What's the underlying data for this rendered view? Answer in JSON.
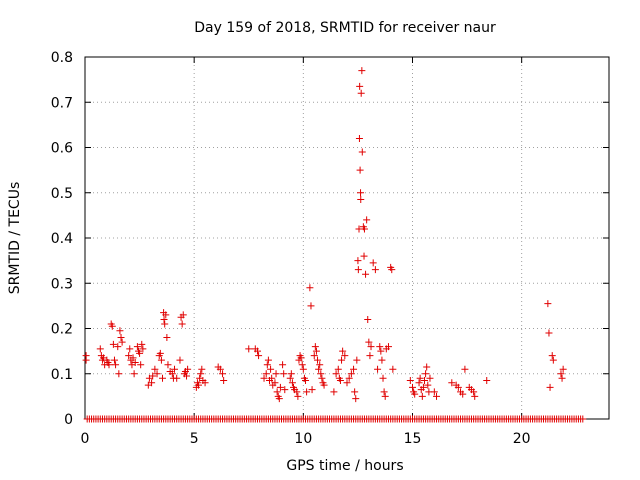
{
  "chart_data": {
    "type": "scatter",
    "title": "Day 159 of 2018, SRMTID for receiver naur",
    "xlabel": "GPS time / hours",
    "ylabel": "SRMTID / TECUs",
    "xlim": [
      0,
      24
    ],
    "ylim": [
      0,
      0.8
    ],
    "xticks": [
      0,
      5,
      10,
      15,
      20
    ],
    "xtick_labels": [
      "0",
      "5",
      "10",
      "15",
      "20"
    ],
    "yticks": [
      0,
      0.1,
      0.2,
      0.3,
      0.4,
      0.5,
      0.6,
      0.7,
      0.8
    ],
    "ytick_labels": [
      "0",
      "0.1",
      "0.2",
      "0.3",
      "0.4",
      "0.5",
      "0.6",
      "0.7",
      "0.8"
    ],
    "grid": true,
    "marker": "+",
    "marker_color": "#e00000",
    "zero_line": {
      "x_start": 0.1,
      "x_end": 22.8,
      "step": 0.1,
      "y": 0
    },
    "series": [
      {
        "name": "SRMTID",
        "points": [
          [
            0.05,
            0.14
          ],
          [
            0.05,
            0.13
          ],
          [
            0.7,
            0.155
          ],
          [
            0.75,
            0.14
          ],
          [
            0.8,
            0.13
          ],
          [
            0.85,
            0.135
          ],
          [
            0.9,
            0.12
          ],
          [
            1.0,
            0.13
          ],
          [
            1.05,
            0.125
          ],
          [
            1.1,
            0.12
          ],
          [
            1.2,
            0.21
          ],
          [
            1.25,
            0.205
          ],
          [
            1.3,
            0.165
          ],
          [
            1.35,
            0.13
          ],
          [
            1.4,
            0.12
          ],
          [
            1.5,
            0.16
          ],
          [
            1.6,
            0.195
          ],
          [
            1.65,
            0.18
          ],
          [
            1.7,
            0.17
          ],
          [
            1.55,
            0.1
          ],
          [
            2.0,
            0.14
          ],
          [
            2.05,
            0.155
          ],
          [
            2.1,
            0.13
          ],
          [
            2.15,
            0.12
          ],
          [
            2.2,
            0.135
          ],
          [
            2.25,
            0.1
          ],
          [
            2.3,
            0.125
          ],
          [
            2.4,
            0.16
          ],
          [
            2.45,
            0.15
          ],
          [
            2.5,
            0.145
          ],
          [
            2.55,
            0.12
          ],
          [
            2.6,
            0.165
          ],
          [
            2.65,
            0.155
          ],
          [
            2.9,
            0.075
          ],
          [
            2.95,
            0.09
          ],
          [
            3.05,
            0.08
          ],
          [
            3.1,
            0.095
          ],
          [
            3.2,
            0.11
          ],
          [
            3.3,
            0.1
          ],
          [
            3.4,
            0.14
          ],
          [
            3.45,
            0.145
          ],
          [
            3.5,
            0.13
          ],
          [
            3.55,
            0.09
          ],
          [
            3.6,
            0.235
          ],
          [
            3.62,
            0.22
          ],
          [
            3.65,
            0.21
          ],
          [
            3.7,
            0.23
          ],
          [
            3.75,
            0.18
          ],
          [
            3.8,
            0.12
          ],
          [
            3.9,
            0.105
          ],
          [
            4.0,
            0.1
          ],
          [
            4.05,
            0.09
          ],
          [
            4.1,
            0.11
          ],
          [
            4.2,
            0.09
          ],
          [
            4.35,
            0.13
          ],
          [
            4.4,
            0.225
          ],
          [
            4.45,
            0.21
          ],
          [
            4.5,
            0.23
          ],
          [
            4.55,
            0.1
          ],
          [
            4.6,
            0.105
          ],
          [
            4.65,
            0.095
          ],
          [
            4.7,
            0.11
          ],
          [
            5.1,
            0.07
          ],
          [
            5.15,
            0.08
          ],
          [
            5.2,
            0.075
          ],
          [
            5.25,
            0.09
          ],
          [
            5.3,
            0.1
          ],
          [
            5.35,
            0.11
          ],
          [
            5.4,
            0.085
          ],
          [
            5.5,
            0.08
          ],
          [
            6.1,
            0.115
          ],
          [
            6.2,
            0.11
          ],
          [
            6.3,
            0.1
          ],
          [
            6.35,
            0.085
          ],
          [
            7.5,
            0.155
          ],
          [
            7.8,
            0.155
          ],
          [
            7.9,
            0.15
          ],
          [
            7.95,
            0.14
          ],
          [
            8.2,
            0.09
          ],
          [
            8.3,
            0.1
          ],
          [
            8.35,
            0.12
          ],
          [
            8.4,
            0.13
          ],
          [
            8.45,
            0.085
          ],
          [
            8.5,
            0.11
          ],
          [
            8.55,
            0.09
          ],
          [
            8.6,
            0.075
          ],
          [
            8.7,
            0.08
          ],
          [
            8.75,
            0.1
          ],
          [
            8.8,
            0.06
          ],
          [
            8.85,
            0.05
          ],
          [
            8.9,
            0.045
          ],
          [
            8.95,
            0.07
          ],
          [
            9.05,
            0.12
          ],
          [
            9.1,
            0.1
          ],
          [
            9.15,
            0.065
          ],
          [
            9.4,
            0.09
          ],
          [
            9.45,
            0.1
          ],
          [
            9.5,
            0.08
          ],
          [
            9.55,
            0.07
          ],
          [
            9.6,
            0.065
          ],
          [
            9.7,
            0.06
          ],
          [
            9.75,
            0.05
          ],
          [
            9.8,
            0.13
          ],
          [
            9.85,
            0.14
          ],
          [
            9.9,
            0.135
          ],
          [
            9.95,
            0.12
          ],
          [
            10.0,
            0.11
          ],
          [
            10.05,
            0.09
          ],
          [
            10.1,
            0.085
          ],
          [
            10.15,
            0.06
          ],
          [
            10.3,
            0.29
          ],
          [
            10.35,
            0.25
          ],
          [
            10.4,
            0.065
          ],
          [
            10.5,
            0.14
          ],
          [
            10.55,
            0.16
          ],
          [
            10.6,
            0.15
          ],
          [
            10.65,
            0.13
          ],
          [
            10.7,
            0.11
          ],
          [
            10.75,
            0.12
          ],
          [
            10.8,
            0.1
          ],
          [
            10.85,
            0.09
          ],
          [
            10.9,
            0.08
          ],
          [
            10.95,
            0.075
          ],
          [
            11.4,
            0.06
          ],
          [
            11.5,
            0.1
          ],
          [
            11.6,
            0.11
          ],
          [
            11.65,
            0.09
          ],
          [
            11.7,
            0.085
          ],
          [
            11.75,
            0.13
          ],
          [
            11.8,
            0.15
          ],
          [
            11.9,
            0.14
          ],
          [
            12.0,
            0.08
          ],
          [
            12.1,
            0.09
          ],
          [
            12.2,
            0.1
          ],
          [
            12.3,
            0.11
          ],
          [
            12.35,
            0.06
          ],
          [
            12.4,
            0.045
          ],
          [
            12.45,
            0.13
          ],
          [
            12.5,
            0.35
          ],
          [
            12.52,
            0.33
          ],
          [
            12.55,
            0.42
          ],
          [
            12.57,
            0.62
          ],
          [
            12.58,
            0.735
          ],
          [
            12.6,
            0.55
          ],
          [
            12.62,
            0.5
          ],
          [
            12.63,
            0.485
          ],
          [
            12.65,
            0.72
          ],
          [
            12.68,
            0.77
          ],
          [
            12.7,
            0.59
          ],
          [
            12.75,
            0.425
          ],
          [
            12.78,
            0.36
          ],
          [
            12.8,
            0.42
          ],
          [
            12.85,
            0.32
          ],
          [
            12.9,
            0.44
          ],
          [
            12.95,
            0.22
          ],
          [
            13.0,
            0.17
          ],
          [
            13.05,
            0.14
          ],
          [
            13.1,
            0.16
          ],
          [
            13.2,
            0.345
          ],
          [
            13.3,
            0.33
          ],
          [
            13.4,
            0.11
          ],
          [
            13.5,
            0.16
          ],
          [
            13.55,
            0.15
          ],
          [
            13.6,
            0.13
          ],
          [
            13.65,
            0.09
          ],
          [
            13.7,
            0.06
          ],
          [
            13.75,
            0.05
          ],
          [
            13.8,
            0.155
          ],
          [
            13.9,
            0.16
          ],
          [
            14.0,
            0.335
          ],
          [
            14.05,
            0.33
          ],
          [
            14.1,
            0.11
          ],
          [
            14.9,
            0.085
          ],
          [
            15.0,
            0.07
          ],
          [
            15.05,
            0.06
          ],
          [
            15.1,
            0.055
          ],
          [
            15.3,
            0.08
          ],
          [
            15.35,
            0.09
          ],
          [
            15.4,
            0.065
          ],
          [
            15.45,
            0.05
          ],
          [
            15.5,
            0.07
          ],
          [
            15.55,
            0.085
          ],
          [
            15.6,
            0.1
          ],
          [
            15.65,
            0.115
          ],
          [
            15.7,
            0.075
          ],
          [
            15.75,
            0.06
          ],
          [
            15.8,
            0.09
          ],
          [
            16.0,
            0.06
          ],
          [
            16.1,
            0.05
          ],
          [
            16.8,
            0.08
          ],
          [
            17.0,
            0.075
          ],
          [
            17.1,
            0.07
          ],
          [
            17.2,
            0.06
          ],
          [
            17.3,
            0.055
          ],
          [
            17.4,
            0.11
          ],
          [
            17.6,
            0.07
          ],
          [
            17.7,
            0.065
          ],
          [
            17.8,
            0.06
          ],
          [
            17.85,
            0.05
          ],
          [
            18.4,
            0.085
          ],
          [
            21.2,
            0.255
          ],
          [
            21.25,
            0.19
          ],
          [
            21.3,
            0.07
          ],
          [
            21.4,
            0.14
          ],
          [
            21.45,
            0.13
          ],
          [
            21.8,
            0.1
          ],
          [
            21.85,
            0.09
          ],
          [
            21.9,
            0.11
          ]
        ]
      }
    ]
  }
}
